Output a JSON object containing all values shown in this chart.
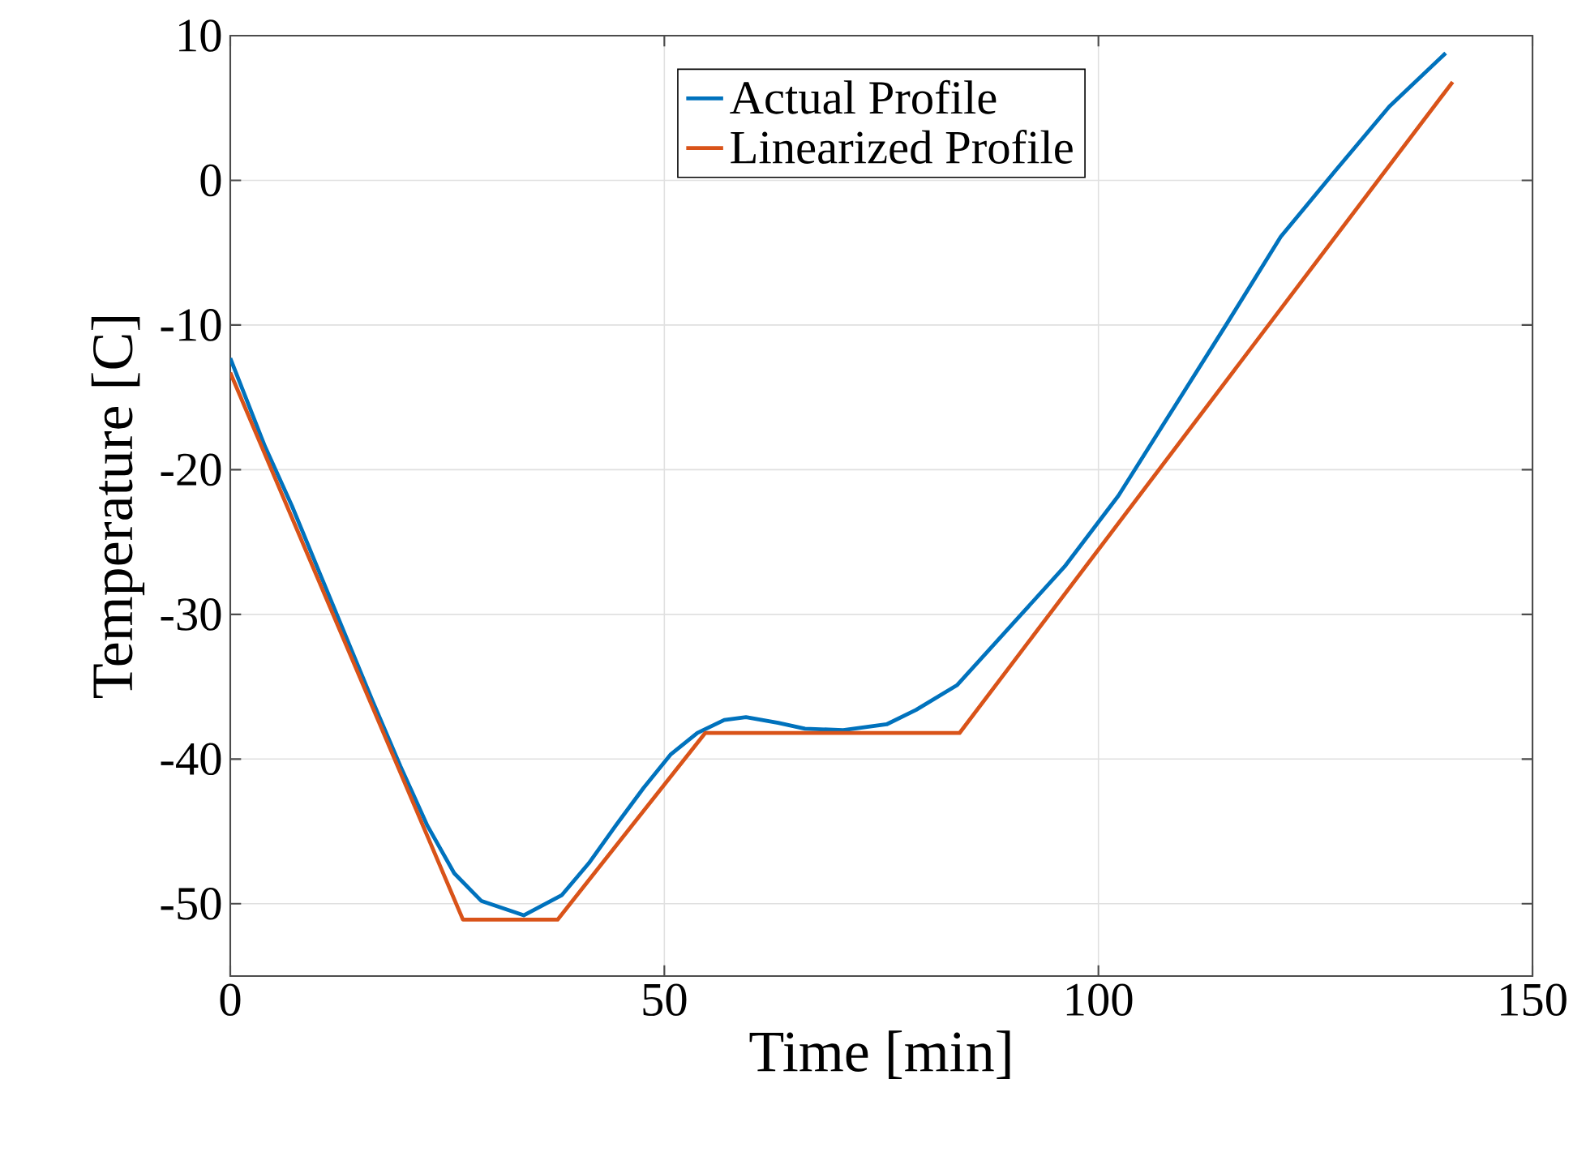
{
  "chart_data": {
    "type": "line",
    "xlabel": "Time [min]",
    "ylabel": "Temperature [C]",
    "xlim": [
      0,
      150
    ],
    "ylim": [
      -55,
      10
    ],
    "xticks": [
      0,
      50,
      100,
      150
    ],
    "yticks": [
      -50,
      -40,
      -30,
      -20,
      -10,
      0,
      10
    ],
    "grid": true,
    "legend": "top",
    "marker": "none",
    "line_style": "solid",
    "series": [
      {
        "name": "Actual Profile",
        "color": "#0072bd",
        "x": [
          0,
          4.0,
          7.1,
          10.2,
          13.3,
          16.4,
          19.6,
          22.7,
          25.8,
          28.9,
          33.8,
          38.2,
          41.3,
          44.4,
          47.6,
          50.7,
          53.8,
          56.9,
          59.4,
          63.1,
          66.2,
          70.6,
          75.6,
          79.0,
          83.7,
          89.9,
          96.1,
          102.3,
          108.6,
          114.8,
          121.0,
          127.2,
          133.5,
          140.0
        ],
        "values": [
          -12.3,
          -18.4,
          -22.5,
          -27.0,
          -31.5,
          -36.0,
          -40.5,
          -44.6,
          -47.9,
          -49.8,
          -50.8,
          -49.4,
          -47.2,
          -44.6,
          -42.0,
          -39.7,
          -38.2,
          -37.3,
          -37.1,
          -37.5,
          -37.9,
          -38.0,
          -37.6,
          -36.6,
          -34.9,
          -30.8,
          -26.7,
          -21.8,
          -15.8,
          -9.9,
          -3.9,
          0.6,
          5.1,
          8.8
        ]
      },
      {
        "name": "Linearized Profile",
        "color": "#d95319",
        "x": [
          0,
          26.8,
          37.7,
          54.7,
          84.0,
          140.8
        ],
        "values": [
          -13.3,
          -51.1,
          -51.1,
          -38.2,
          -38.2,
          6.8
        ]
      }
    ]
  }
}
